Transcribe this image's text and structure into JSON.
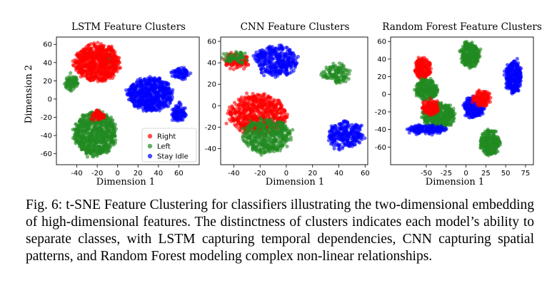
{
  "caption": "Fig. 6: t-SNE Feature Clustering for classifiers illustrating the two-dimensional embedding of high-dimensional features. The distinctness of clusters indicates each model’s ability to separate classes, with LSTM capturing temporal dependencies, CNN capturing spatial patterns, and Random Forest modeling complex non-linear relationships.",
  "colors": {
    "Right": "#ff0000",
    "Left": "#228b22",
    "Stay Idle": "#0000ff"
  },
  "chart_data": [
    {
      "type": "scatter",
      "title": "LSTM Feature Clusters",
      "xlabel": "Dimension 1",
      "ylabel": "Dimension 2",
      "xlim": [
        -60,
        80
      ],
      "ylim": [
        -72,
        68
      ],
      "xticks": [
        -40,
        -20,
        0,
        20,
        40,
        60
      ],
      "yticks": [
        -60,
        -40,
        -20,
        0,
        20,
        40,
        60
      ],
      "legend": {
        "position": "bottom-right",
        "entries": [
          "Right",
          "Left",
          "Stay Idle"
        ]
      },
      "clusters": [
        {
          "class": "Left",
          "cx": -22,
          "cy": -38,
          "rx": 20,
          "ry": 24
        },
        {
          "class": "Left",
          "cx": -45,
          "cy": 18,
          "rx": 6,
          "ry": 8
        },
        {
          "class": "Left",
          "cx": -10,
          "cy": 45,
          "rx": 6,
          "ry": 6
        },
        {
          "class": "Right",
          "cx": -20,
          "cy": 40,
          "rx": 22,
          "ry": 20
        },
        {
          "class": "Right",
          "cx": -20,
          "cy": -18,
          "rx": 6,
          "ry": 5
        },
        {
          "class": "Stay Idle",
          "cx": 32,
          "cy": 5,
          "rx": 22,
          "ry": 18
        },
        {
          "class": "Stay Idle",
          "cx": 62,
          "cy": 28,
          "rx": 8,
          "ry": 6
        },
        {
          "class": "Stay Idle",
          "cx": 60,
          "cy": -15,
          "rx": 6,
          "ry": 10
        }
      ]
    },
    {
      "type": "scatter",
      "title": "CNN Feature Clusters",
      "xlabel": "Dimension 1",
      "ylabel": "",
      "xlim": [
        -50,
        62
      ],
      "ylim": [
        -55,
        64
      ],
      "xticks": [
        -40,
        -20,
        0,
        20,
        40,
        60
      ],
      "yticks": [
        -40,
        -20,
        0,
        20,
        40,
        60
      ],
      "clusters": [
        {
          "class": "Right",
          "cx": -38,
          "cy": 42,
          "rx": 9,
          "ry": 7
        },
        {
          "class": "Left",
          "cx": -38,
          "cy": 45,
          "rx": 8,
          "ry": 5
        },
        {
          "class": "Stay Idle",
          "cx": -8,
          "cy": 42,
          "rx": 16,
          "ry": 14
        },
        {
          "class": "Left",
          "cx": 38,
          "cy": 30,
          "rx": 10,
          "ry": 8
        },
        {
          "class": "Right",
          "cx": -22,
          "cy": -8,
          "rx": 22,
          "ry": 18
        },
        {
          "class": "Left",
          "cx": -15,
          "cy": -28,
          "rx": 18,
          "ry": 16
        },
        {
          "class": "Stay Idle",
          "cx": 45,
          "cy": -28,
          "rx": 13,
          "ry": 13
        }
      ]
    },
    {
      "type": "scatter",
      "title": "Random Forest Feature Clusters",
      "xlabel": "Dimension 1",
      "ylabel": "",
      "xlim": [
        -95,
        85
      ],
      "ylim": [
        -80,
        65
      ],
      "xticks": [
        -50,
        -25,
        0,
        25,
        50,
        75
      ],
      "yticks": [
        -60,
        -40,
        -20,
        0,
        20,
        40,
        60
      ],
      "clusters": [
        {
          "class": "Left",
          "cx": 5,
          "cy": 45,
          "rx": 12,
          "ry": 14
        },
        {
          "class": "Right",
          "cx": -55,
          "cy": 30,
          "rx": 10,
          "ry": 12
        },
        {
          "class": "Left",
          "cx": -50,
          "cy": 5,
          "rx": 14,
          "ry": 12
        },
        {
          "class": "Left",
          "cx": -35,
          "cy": -25,
          "rx": 20,
          "ry": 15
        },
        {
          "class": "Right",
          "cx": -45,
          "cy": -15,
          "rx": 10,
          "ry": 8
        },
        {
          "class": "Stay Idle",
          "cx": 60,
          "cy": 20,
          "rx": 10,
          "ry": 18
        },
        {
          "class": "Stay Idle",
          "cx": 10,
          "cy": -15,
          "rx": 12,
          "ry": 12
        },
        {
          "class": "Right",
          "cx": 20,
          "cy": -5,
          "rx": 10,
          "ry": 8
        },
        {
          "class": "Left",
          "cx": 30,
          "cy": -55,
          "rx": 12,
          "ry": 14
        },
        {
          "class": "Stay Idle",
          "cx": -50,
          "cy": -40,
          "rx": 25,
          "ry": 4
        }
      ]
    }
  ]
}
